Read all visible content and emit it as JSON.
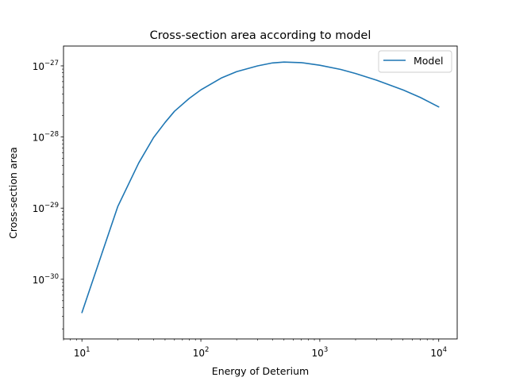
{
  "chart_data": {
    "type": "line",
    "title": "Cross-section area according to model",
    "xlabel": "Energy of Deterium",
    "ylabel": "Cross-section area",
    "xscale": "log",
    "yscale": "log",
    "xlim": [
      7.0,
      14300
    ],
    "ylim": [
      1.45e-31,
      1.9e-27
    ],
    "grid": false,
    "legend_position": "top-right",
    "x_ticks": [
      {
        "value": 10,
        "base": "10",
        "exp": "1"
      },
      {
        "value": 100,
        "base": "10",
        "exp": "2"
      },
      {
        "value": 1000,
        "base": "10",
        "exp": "3"
      },
      {
        "value": 10000,
        "base": "10",
        "exp": "4"
      }
    ],
    "y_ticks": [
      {
        "value": 1e-30,
        "base": "10",
        "exp": "−30"
      },
      {
        "value": 1e-29,
        "base": "10",
        "exp": "−29"
      },
      {
        "value": 1e-28,
        "base": "10",
        "exp": "−28"
      },
      {
        "value": 1e-27,
        "base": "10",
        "exp": "−27"
      }
    ],
    "series": [
      {
        "name": "Model",
        "color": "#1f77b4",
        "x": [
          10,
          20,
          30,
          40,
          50,
          60,
          80,
          100,
          150,
          200,
          300,
          400,
          500,
          700,
          1000,
          1500,
          2000,
          3000,
          5000,
          7000,
          10000
        ],
        "y": [
          3.4e-31,
          1.05e-29,
          4.3e-29,
          9.8e-29,
          1.6e-28,
          2.3e-28,
          3.5e-28,
          4.6e-28,
          6.8e-28,
          8.3e-28,
          1e-27,
          1.1e-27,
          1.13e-27,
          1.11e-27,
          1.02e-27,
          8.9e-28,
          7.8e-28,
          6.3e-28,
          4.6e-28,
          3.6e-28,
          2.65e-28
        ]
      }
    ]
  }
}
